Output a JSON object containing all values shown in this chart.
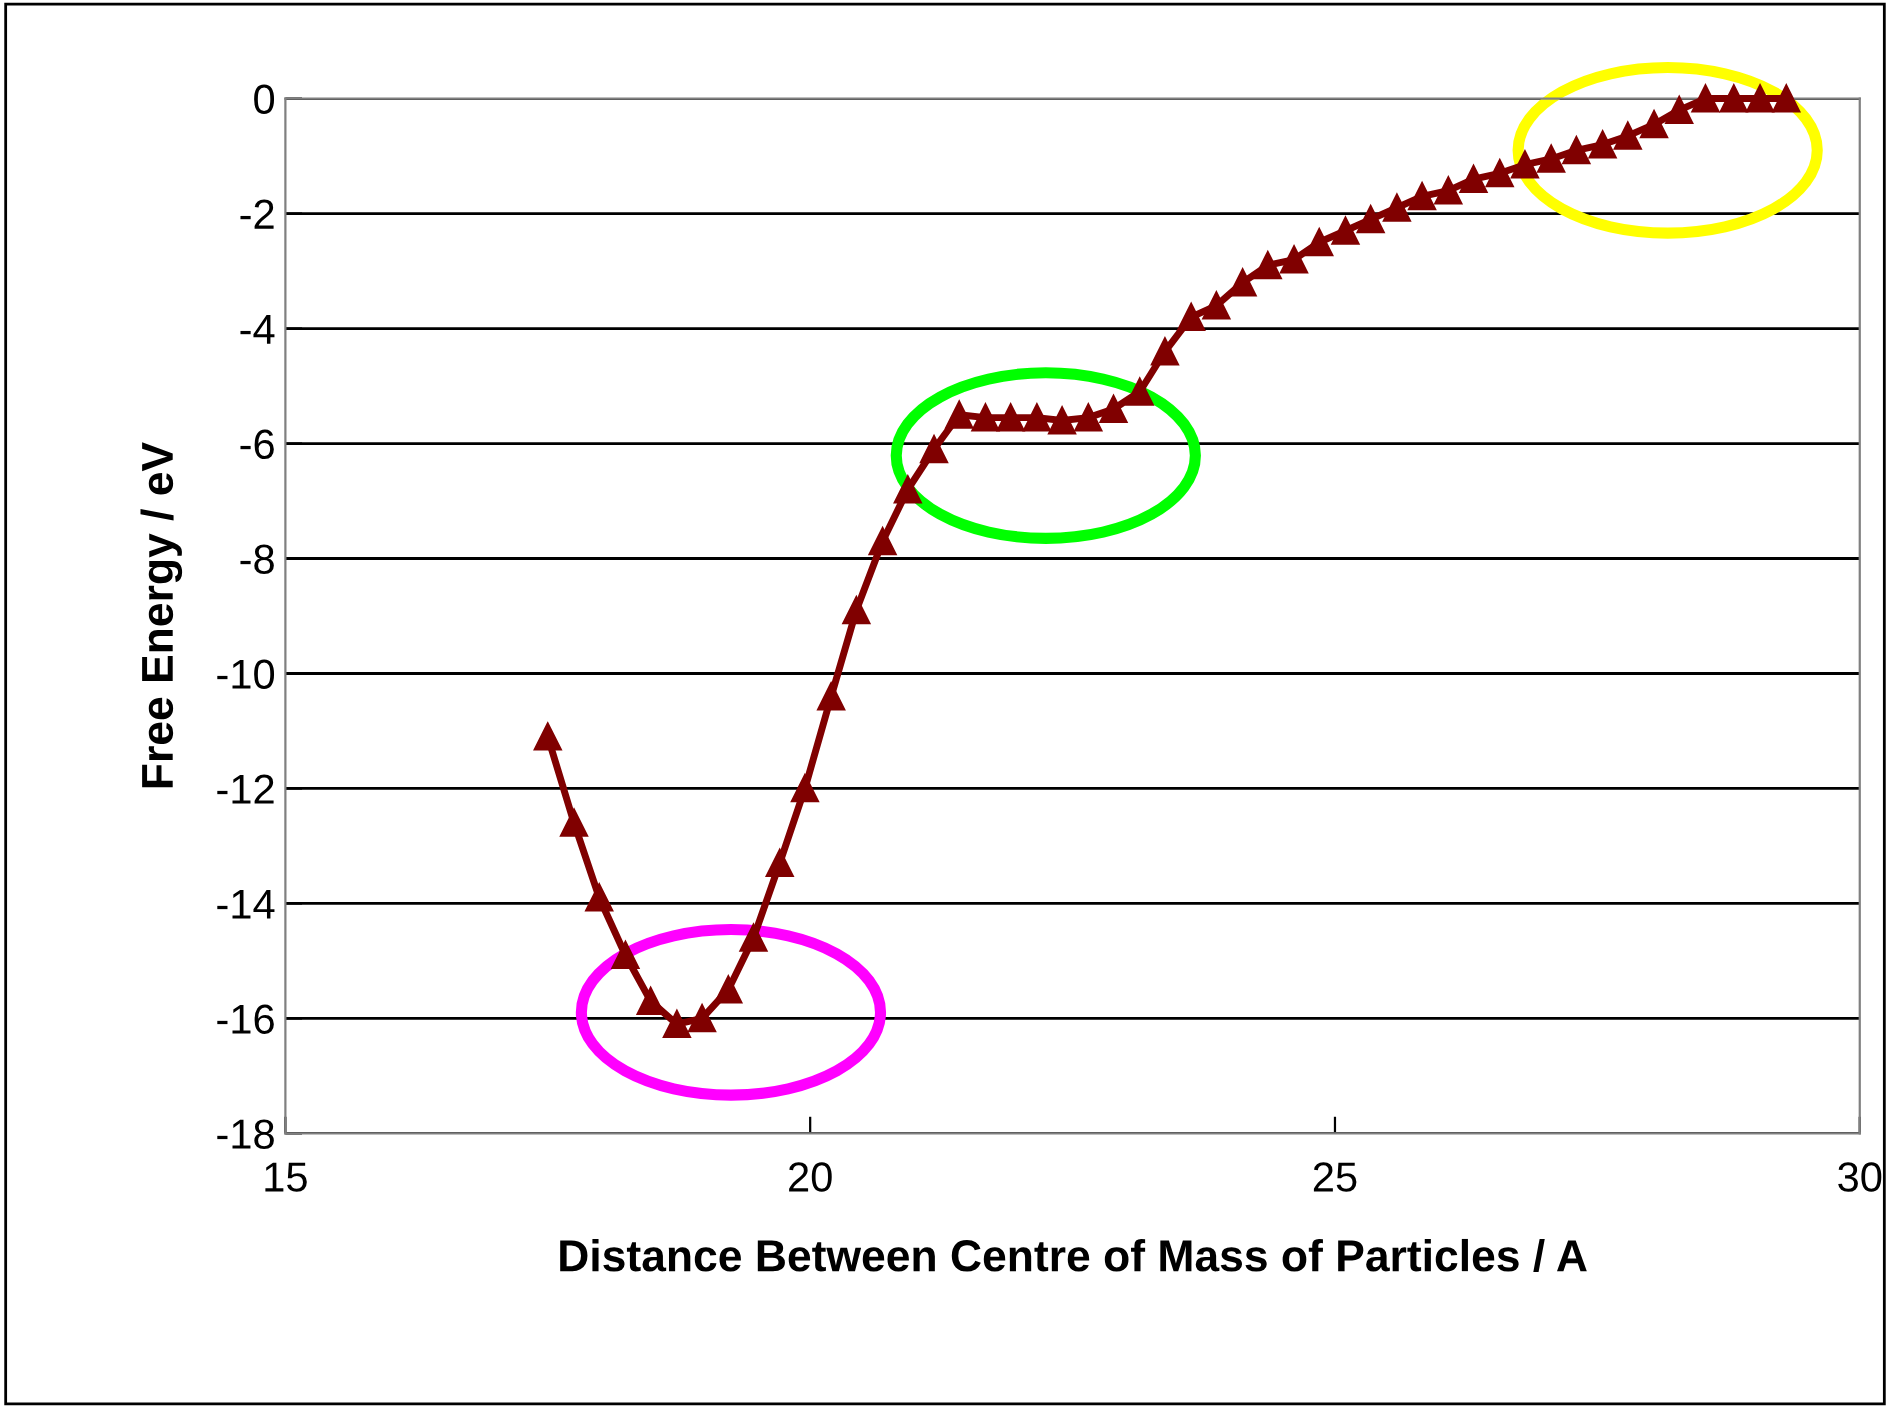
{
  "chart_data": {
    "type": "line",
    "xlabel": "Distance Between Centre of Mass of Particles / A",
    "ylabel": "Free Energy / eV",
    "x": [
      17.5,
      17.75,
      17.99,
      18.24,
      18.48,
      18.73,
      18.97,
      19.22,
      19.46,
      19.71,
      19.95,
      20.2,
      20.44,
      20.69,
      20.93,
      21.18,
      21.42,
      21.67,
      21.91,
      22.16,
      22.4,
      22.65,
      22.89,
      23.14,
      23.38,
      23.63,
      23.87,
      24.12,
      24.36,
      24.61,
      24.85,
      25.1,
      25.34,
      25.59,
      25.83,
      26.08,
      26.32,
      26.57,
      26.81,
      27.06,
      27.3,
      27.55,
      27.79,
      28.04,
      28.28,
      28.53,
      28.8,
      29.05,
      29.3
    ],
    "series": [
      {
        "color": "#800000",
        "values": [
          -11.1,
          -12.6,
          -13.9,
          -14.9,
          -15.7,
          -16.1,
          -16.0,
          -15.5,
          -14.6,
          -13.3,
          -12.0,
          -10.4,
          -8.9,
          -7.7,
          -6.8,
          -6.1,
          -5.5,
          -5.55,
          -5.55,
          -5.55,
          -5.6,
          -5.55,
          -5.4,
          -5.1,
          -4.4,
          -3.8,
          -3.6,
          -3.2,
          -2.9,
          -2.8,
          -2.5,
          -2.3,
          -2.1,
          -1.9,
          -1.7,
          -1.6,
          -1.4,
          -1.3,
          -1.15,
          -1.05,
          -0.9,
          -0.8,
          -0.65,
          -0.45,
          -0.2,
          0,
          0,
          0,
          0
        ]
      }
    ],
    "xlim": [
      15,
      30
    ],
    "xticks": [
      15,
      20,
      25,
      30
    ],
    "ylim": [
      -18,
      0
    ],
    "yticks": [
      -18,
      -16,
      -14,
      -12,
      -10,
      -8,
      -6,
      -4,
      -2,
      0
    ],
    "grid": "y",
    "marker": "triangle",
    "line_style": "solid"
  }
}
